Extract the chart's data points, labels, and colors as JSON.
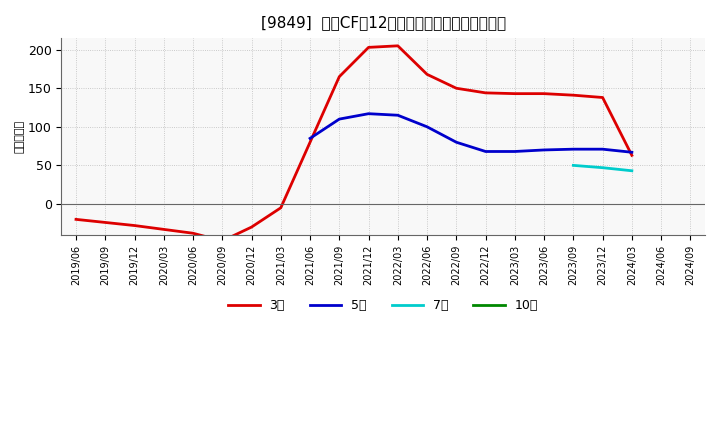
{
  "title": "[9849]  投賄CFだ12か月移動合計の平均値の推移",
  "ylabel": "（百万円）",
  "background_color": "#ffffff",
  "plot_bg_color": "#f8f8f8",
  "grid_color": "#bbbbbb",
  "ylim": [
    -40,
    215
  ],
  "yticks": [
    0,
    50,
    100,
    150,
    200
  ],
  "series": {
    "3年": {
      "color": "#dd0000",
      "data": [
        [
          "2019/06",
          -20
        ],
        [
          "2019/09",
          -24
        ],
        [
          "2019/12",
          -28
        ],
        [
          "2020/03",
          -33
        ],
        [
          "2020/06",
          -38
        ],
        [
          "2020/09",
          -48
        ],
        [
          "2020/12",
          -30
        ],
        [
          "2021/03",
          -5
        ],
        [
          "2021/06",
          80
        ],
        [
          "2021/09",
          165
        ],
        [
          "2021/12",
          203
        ],
        [
          "2022/03",
          205
        ],
        [
          "2022/06",
          168
        ],
        [
          "2022/09",
          150
        ],
        [
          "2022/12",
          144
        ],
        [
          "2023/03",
          143
        ],
        [
          "2023/06",
          143
        ],
        [
          "2023/09",
          141
        ],
        [
          "2023/12",
          138
        ],
        [
          "2024/03",
          63
        ]
      ]
    },
    "5年": {
      "color": "#0000cc",
      "data": [
        [
          "2021/06",
          85
        ],
        [
          "2021/09",
          110
        ],
        [
          "2021/12",
          117
        ],
        [
          "2022/03",
          115
        ],
        [
          "2022/06",
          100
        ],
        [
          "2022/09",
          80
        ],
        [
          "2022/12",
          68
        ],
        [
          "2023/03",
          68
        ],
        [
          "2023/06",
          70
        ],
        [
          "2023/09",
          71
        ],
        [
          "2023/12",
          71
        ],
        [
          "2024/03",
          67
        ]
      ]
    },
    "7年": {
      "color": "#00cccc",
      "data": [
        [
          "2023/09",
          50
        ],
        [
          "2023/12",
          47
        ],
        [
          "2024/03",
          43
        ]
      ]
    },
    "10年": {
      "color": "#008800",
      "data": []
    }
  },
  "legend_entries": [
    "3年",
    "5年",
    "7年",
    "10年"
  ],
  "legend_colors": [
    "#dd0000",
    "#0000cc",
    "#00cccc",
    "#008800"
  ],
  "xticklabels": [
    "2019/06",
    "2019/09",
    "2019/12",
    "2020/03",
    "2020/06",
    "2020/09",
    "2020/12",
    "2021/03",
    "2021/06",
    "2021/09",
    "2021/12",
    "2022/03",
    "2022/06",
    "2022/09",
    "2022/12",
    "2023/03",
    "2023/06",
    "2023/09",
    "2023/12",
    "2024/03",
    "2024/06",
    "2024/09"
  ]
}
